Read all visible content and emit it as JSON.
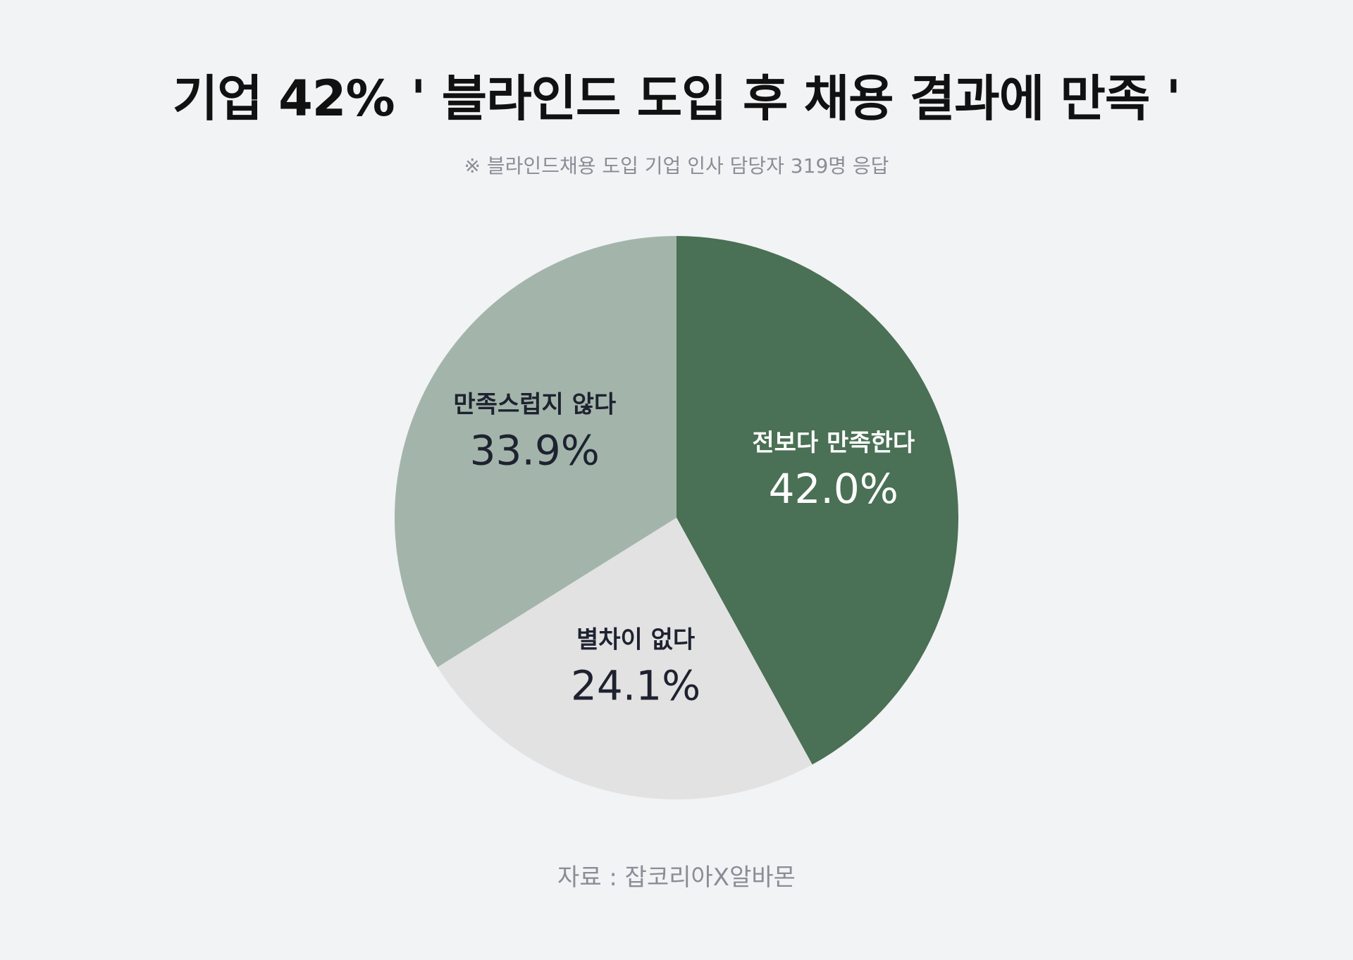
{
  "header": {
    "title": "기업 42% ' 블라인드 도입 후 채용 결과에 만족 '",
    "subtitle": "※ 블라인드채용 도입 기업 인사 담당자 319명 응답"
  },
  "footer": {
    "source": "자료 : 잡코리아X알바몬"
  },
  "chart_data": {
    "type": "pie",
    "title": "기업 42% ' 블라인드 도입 후 채용 결과에 만족 '",
    "subtitle": "※ 블라인드채용 도입 기업 인사 담당자 319명 응답",
    "start_angle": "12 o'clock",
    "direction": "clockwise",
    "legend": "none",
    "slices": [
      {
        "label": "전보다 만족한다",
        "value": 42.0,
        "display": "42.0%",
        "color": "#4a7055",
        "text_color": "#ffffff"
      },
      {
        "label": "별차이 없다",
        "value": 24.1,
        "display": "24.1%",
        "color": "#e2e2e2",
        "text_color": "#1e2230"
      },
      {
        "label": "만족스럽지 않다",
        "value": 33.9,
        "display": "33.9%",
        "color": "#a3b5aa",
        "text_color": "#1e2230"
      }
    ]
  }
}
